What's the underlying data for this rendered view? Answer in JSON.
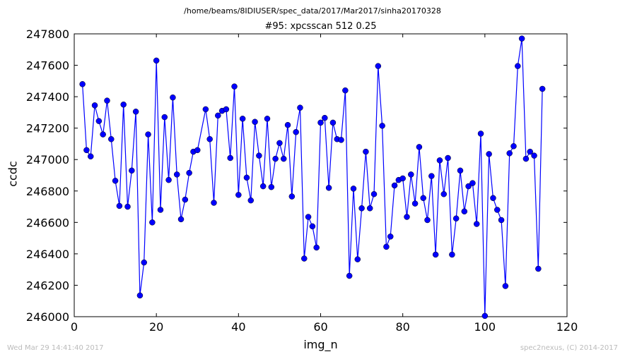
{
  "header": {
    "path": "/home/beams/8IDIUSER/spec_data/2017/Mar2017/sinha20170328"
  },
  "footer": {
    "timestamp": "Wed Mar 29 14:41:40 2017",
    "credit": "spec2nexus, (C) 2014-2017"
  },
  "colors": {
    "series": "#0000ff",
    "axes": "#000000",
    "footer": "#bbbbbb"
  },
  "chart_data": {
    "type": "line",
    "title": "#95: xpcsscan 512 0.25",
    "xlabel": "img_n",
    "ylabel": "ccdc",
    "xlim": [
      0,
      120
    ],
    "ylim": [
      246000,
      247800
    ],
    "xticks": [
      0,
      20,
      40,
      60,
      80,
      100,
      120
    ],
    "yticks": [
      246000,
      246200,
      246400,
      246600,
      246800,
      247000,
      247200,
      247400,
      247600,
      247800
    ],
    "grid": false,
    "markers": "circle",
    "series": [
      {
        "x": [
          2,
          3,
          4,
          5,
          6,
          7,
          8,
          9,
          10,
          11,
          12,
          13,
          14,
          15,
          16,
          17,
          18,
          19,
          20,
          21,
          22,
          23,
          24,
          25,
          26,
          27,
          28,
          29,
          30,
          32,
          33,
          34,
          35,
          36,
          37,
          38,
          39,
          40,
          41,
          42,
          43,
          44,
          45,
          46,
          47,
          48,
          49,
          50,
          51,
          52,
          53,
          54,
          55,
          56,
          57,
          58,
          59,
          60,
          61,
          62,
          63,
          64,
          65,
          66,
          67,
          68,
          69,
          70,
          71,
          72,
          73,
          74,
          75,
          76,
          77,
          78,
          79,
          80,
          81,
          82,
          83,
          84,
          85,
          86,
          87,
          88,
          89,
          90,
          91,
          92,
          93,
          94,
          95,
          96,
          97,
          98,
          99,
          100,
          101,
          102,
          103,
          104,
          105,
          106,
          107,
          108,
          109,
          110,
          111,
          112,
          113,
          114
        ],
        "y": [
          247480,
          247060,
          247020,
          247345,
          247245,
          247160,
          247375,
          247130,
          246865,
          246705,
          247350,
          246700,
          246930,
          247305,
          246135,
          246345,
          247160,
          246600,
          247630,
          246680,
          247270,
          246870,
          247395,
          246905,
          246620,
          246745,
          246915,
          247050,
          247060,
          247320,
          247130,
          246725,
          247280,
          247310,
          247320,
          247010,
          247465,
          246775,
          247260,
          246885,
          246740,
          247240,
          247025,
          246830,
          247260,
          246825,
          247005,
          247105,
          247005,
          247220,
          246765,
          247175,
          247330,
          246370,
          246635,
          246575,
          246440,
          247235,
          247265,
          246820,
          247235,
          247130,
          247125,
          247440,
          246260,
          246815,
          246365,
          246690,
          247050,
          246690,
          246780,
          247595,
          247215,
          246445,
          246510,
          246835,
          246870,
          246880,
          246635,
          246905,
          246720,
          247080,
          246755,
          246615,
          246895,
          246395,
          246995,
          246780,
          247010,
          246395,
          246625,
          246930,
          246670,
          246830,
          246850,
          246590,
          247165,
          246005,
          247035,
          246755,
          246680,
          246615,
          246195,
          247040,
          247085,
          247595,
          247770,
          247005,
          247050,
          247025,
          246305,
          247450
        ]
      }
    ]
  }
}
